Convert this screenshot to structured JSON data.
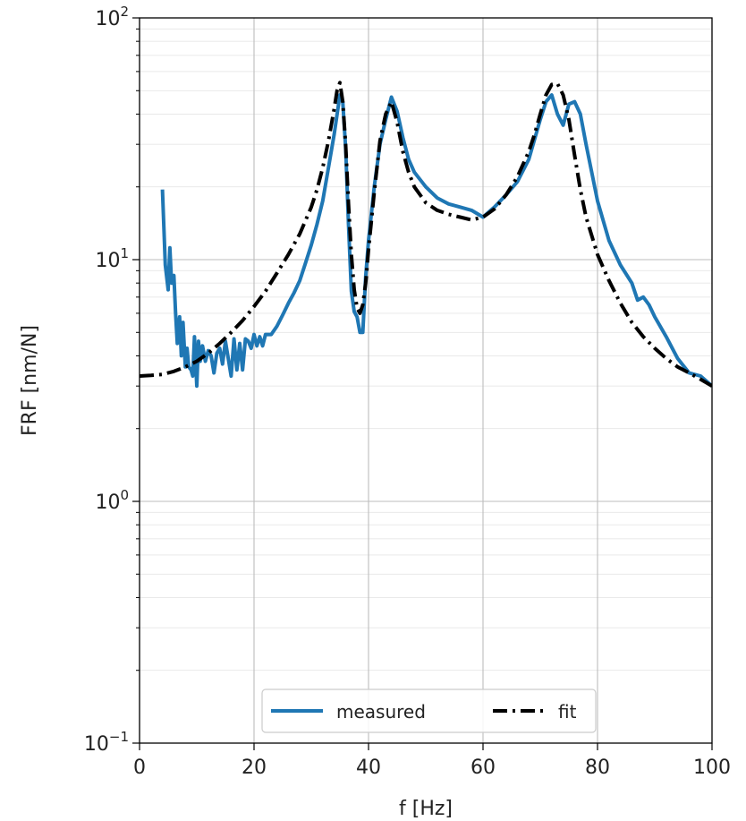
{
  "chart_data": {
    "type": "line",
    "title": "",
    "xlabel": "f [Hz]",
    "ylabel": "FRF [nm/N]",
    "xlim": [
      0,
      100
    ],
    "ylim": [
      0.1,
      100
    ],
    "yscale": "log",
    "grid": true,
    "minor_grid": true,
    "legend_position": "lower-center",
    "x_ticks": [
      {
        "value": 0,
        "label": "0"
      },
      {
        "value": 20,
        "label": "20"
      },
      {
        "value": 40,
        "label": "40"
      },
      {
        "value": 60,
        "label": "60"
      },
      {
        "value": 80,
        "label": "80"
      },
      {
        "value": 100,
        "label": "100"
      }
    ],
    "y_ticks": [
      {
        "value": 0.1,
        "base": "10",
        "exp": "−1"
      },
      {
        "value": 1,
        "base": "10",
        "exp": "0"
      },
      {
        "value": 10,
        "base": "10",
        "exp": "1"
      },
      {
        "value": 100,
        "base": "10",
        "exp": "2"
      }
    ],
    "series": [
      {
        "name": "measured",
        "color": "#1f77b4",
        "style": "solid",
        "x": [
          4,
          4.5,
          5,
          5.3,
          5.6,
          6,
          6.3,
          6.6,
          7,
          7.3,
          7.6,
          8,
          8.3,
          8.6,
          9,
          9.3,
          9.6,
          10,
          10.3,
          10.6,
          11,
          11.5,
          12,
          12.5,
          13,
          13.5,
          14,
          14.5,
          15,
          15.5,
          16,
          16.5,
          17,
          17.5,
          18,
          18.5,
          19,
          19.5,
          20,
          20.5,
          21,
          21.5,
          22,
          23,
          24,
          25,
          26,
          27,
          28,
          29,
          30,
          31,
          32,
          33,
          34,
          35,
          35.5,
          36,
          36.5,
          37,
          37.5,
          38,
          38.5,
          39,
          39.5,
          40,
          41,
          42,
          43,
          44,
          45,
          46,
          47,
          48,
          50,
          52,
          54,
          56,
          58,
          60,
          62,
          64,
          66,
          68,
          70,
          71,
          72,
          73,
          74,
          75,
          76,
          77,
          78,
          80,
          82,
          84,
          86,
          87,
          88,
          89,
          90,
          92,
          94,
          96,
          98,
          100
        ],
        "y": [
          19.5,
          9.5,
          7.5,
          11.2,
          8.0,
          8.6,
          6.0,
          4.5,
          5.8,
          4.0,
          5.5,
          3.6,
          4.3,
          3.6,
          3.5,
          3.3,
          4.8,
          3.0,
          4.6,
          3.8,
          4.4,
          3.8,
          4.2,
          4.0,
          3.4,
          4.1,
          4.3,
          3.7,
          4.6,
          3.9,
          3.3,
          4.7,
          3.5,
          4.5,
          3.5,
          4.7,
          4.6,
          4.3,
          4.9,
          4.4,
          4.8,
          4.4,
          4.9,
          4.9,
          5.3,
          5.9,
          6.6,
          7.3,
          8.2,
          9.7,
          11.5,
          14.0,
          17.5,
          24.0,
          33.0,
          48.0,
          45.0,
          29.0,
          14.0,
          7.4,
          6.1,
          5.8,
          5.0,
          5.0,
          8.5,
          12.0,
          20.0,
          30.0,
          38.0,
          47.0,
          41.0,
          32.0,
          26.0,
          23.0,
          20.0,
          18.0,
          17.0,
          16.5,
          16.0,
          15.0,
          16.5,
          18.5,
          21.0,
          26.0,
          38.0,
          45.0,
          48.0,
          40.0,
          36.0,
          44.0,
          45.0,
          40.0,
          30.0,
          17.5,
          12.0,
          9.5,
          8.0,
          6.8,
          7.0,
          6.5,
          5.8,
          4.8,
          3.9,
          3.4,
          3.3,
          3.0
        ]
      },
      {
        "name": "fit",
        "color": "#000000",
        "style": "dashdot",
        "x": [
          0,
          2,
          4,
          6,
          8,
          10,
          12,
          14,
          16,
          18,
          20,
          22,
          24,
          26,
          28,
          30,
          31,
          32,
          33,
          34,
          34.5,
          35,
          35.5,
          36,
          36.5,
          37,
          37.5,
          38,
          38.5,
          39,
          39.5,
          40,
          41,
          42,
          43,
          44,
          45,
          46,
          47,
          48,
          50,
          52,
          54,
          56,
          58,
          60,
          62,
          64,
          66,
          68,
          69,
          70,
          71,
          72,
          73,
          74,
          75,
          76,
          77,
          78,
          80,
          82,
          84,
          86,
          88,
          90,
          92,
          94,
          96,
          98,
          100
        ],
        "y": [
          3.3,
          3.32,
          3.35,
          3.45,
          3.6,
          3.8,
          4.1,
          4.5,
          5.0,
          5.6,
          6.4,
          7.4,
          8.8,
          10.5,
          12.8,
          16.5,
          19.5,
          24.0,
          31.0,
          42.0,
          50.0,
          54.0,
          45.0,
          30.0,
          17.0,
          10.5,
          7.5,
          6.3,
          6.0,
          6.5,
          8.0,
          11.0,
          19.0,
          31.0,
          40.0,
          45.0,
          37.0,
          28.0,
          23.0,
          20.0,
          17.2,
          16.0,
          15.4,
          15.0,
          14.6,
          15.0,
          16.2,
          18.5,
          22.0,
          28.0,
          33.0,
          40.0,
          48.0,
          53.0,
          53.5,
          48.0,
          38.0,
          27.0,
          19.5,
          15.0,
          10.5,
          8.2,
          6.6,
          5.5,
          4.8,
          4.3,
          3.9,
          3.6,
          3.4,
          3.2,
          3.0
        ]
      }
    ]
  }
}
